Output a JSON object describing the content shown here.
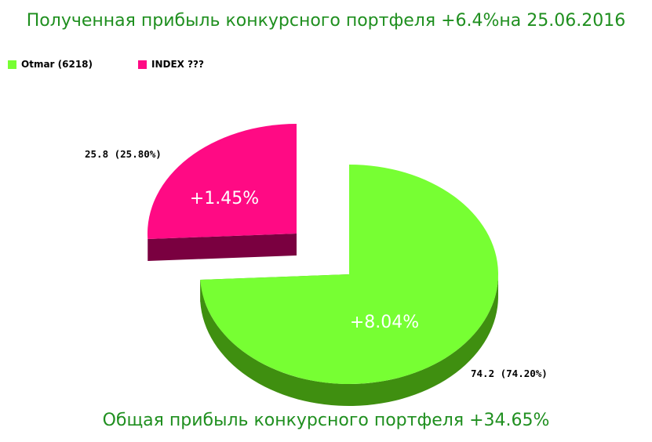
{
  "title_top": "Полученная прибыль конкурсного портфеля +6.4%на 25.06.2016",
  "title_bottom": "Общая прибыль конкурсного портфеля +34.65%",
  "chart_data": {
    "type": "pie",
    "style": "3d-exploded",
    "legend": "top-left",
    "series": [
      {
        "name": "Otmar (6218)",
        "value": 74.2,
        "percent_label": "74.2 (74.20%)",
        "slice_text": "+8.04%",
        "color": "#77ff33",
        "side_color": "#3f8f10"
      },
      {
        "name": "INDEX ???",
        "value": 25.8,
        "percent_label": "25.8 (25.80%)",
        "slice_text": "+1.45%",
        "color": "#ff0a84",
        "side_color": "#7a0040"
      }
    ]
  }
}
